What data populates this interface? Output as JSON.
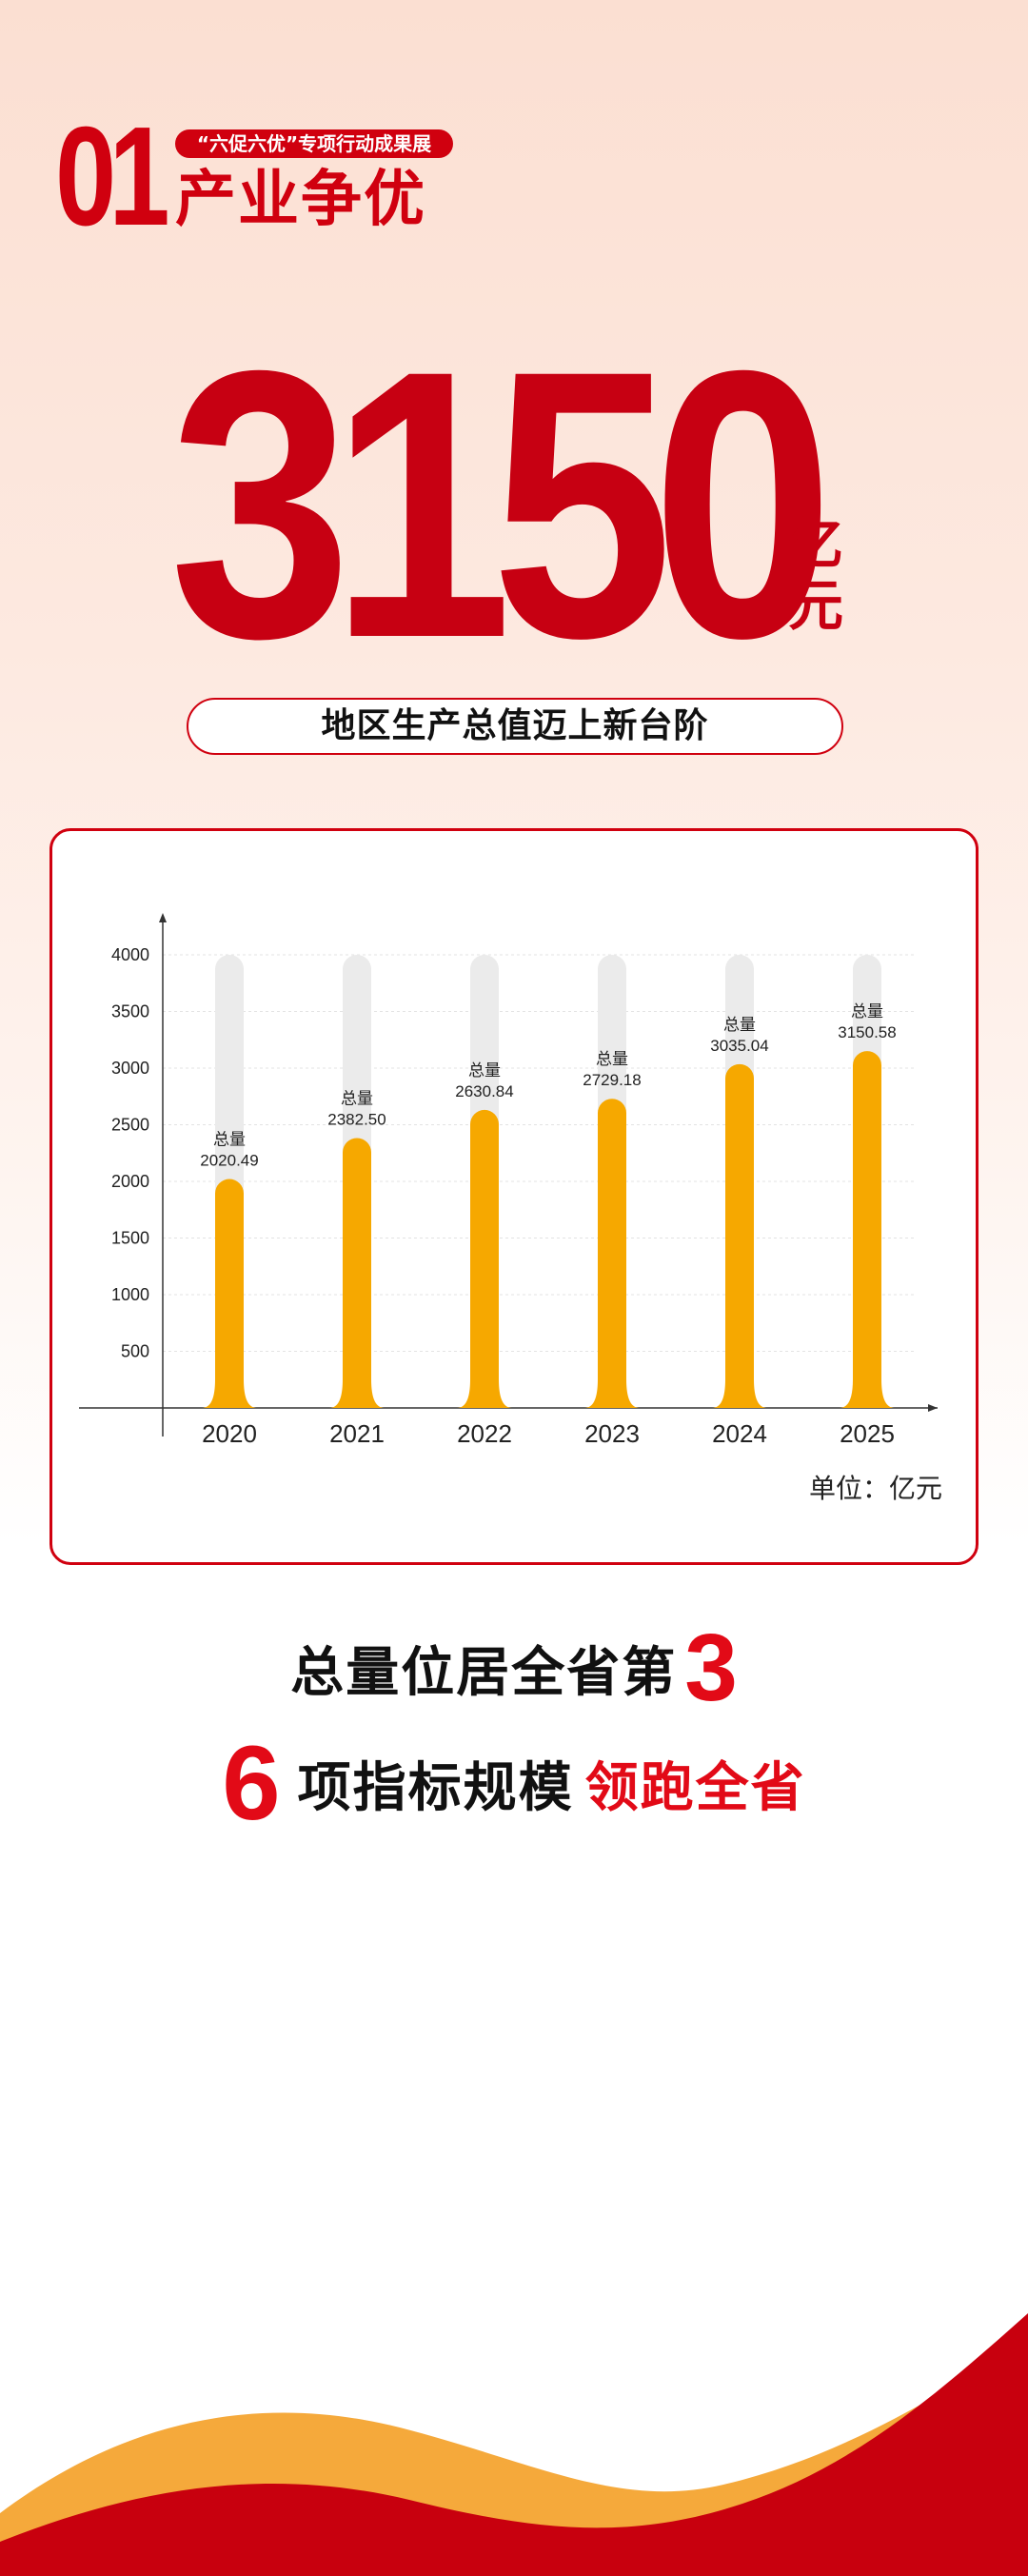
{
  "header": {
    "section_number": "01",
    "tag": "“六促六优”专项行动成果展",
    "title": "产业争优"
  },
  "hero": {
    "value": "3150",
    "unit_line1": "亿",
    "unit_line2": "元",
    "caption": "地区生产总值迈上新台阶"
  },
  "chart_data": {
    "type": "bar",
    "categories": [
      "2020",
      "2021",
      "2022",
      "2023",
      "2024",
      "2025"
    ],
    "series": [
      {
        "values": [
          2020.49,
          2382.5,
          2630.84,
          2729.18,
          3035.04,
          3150.58
        ]
      }
    ],
    "data_labels": [
      "2020.49",
      "2382.50",
      "2630.84",
      "2729.18",
      "3035.04",
      "3150.58"
    ],
    "data_label_prefix": "总量",
    "yticks": [
      "500",
      "1000",
      "1500",
      "2000",
      "2500",
      "3000",
      "3500",
      "4000"
    ],
    "ylim": [
      0,
      4000
    ],
    "unit": "单位：亿元",
    "colors": {
      "bar": "#f6a800",
      "track": "#ebebeb",
      "grid": "#e3e3e3",
      "axis": "#333333"
    }
  },
  "statements": {
    "rank_text": "总量位居全省第",
    "rank_value": "3",
    "count_value": "6",
    "count_text": "项指标规模",
    "count_highlight": "领跑全省"
  },
  "colors": {
    "brand_red": "#d0000f",
    "accent_red": "#e20a17",
    "wave_orange": "#f5a93b",
    "wave_red": "#c8000e"
  }
}
